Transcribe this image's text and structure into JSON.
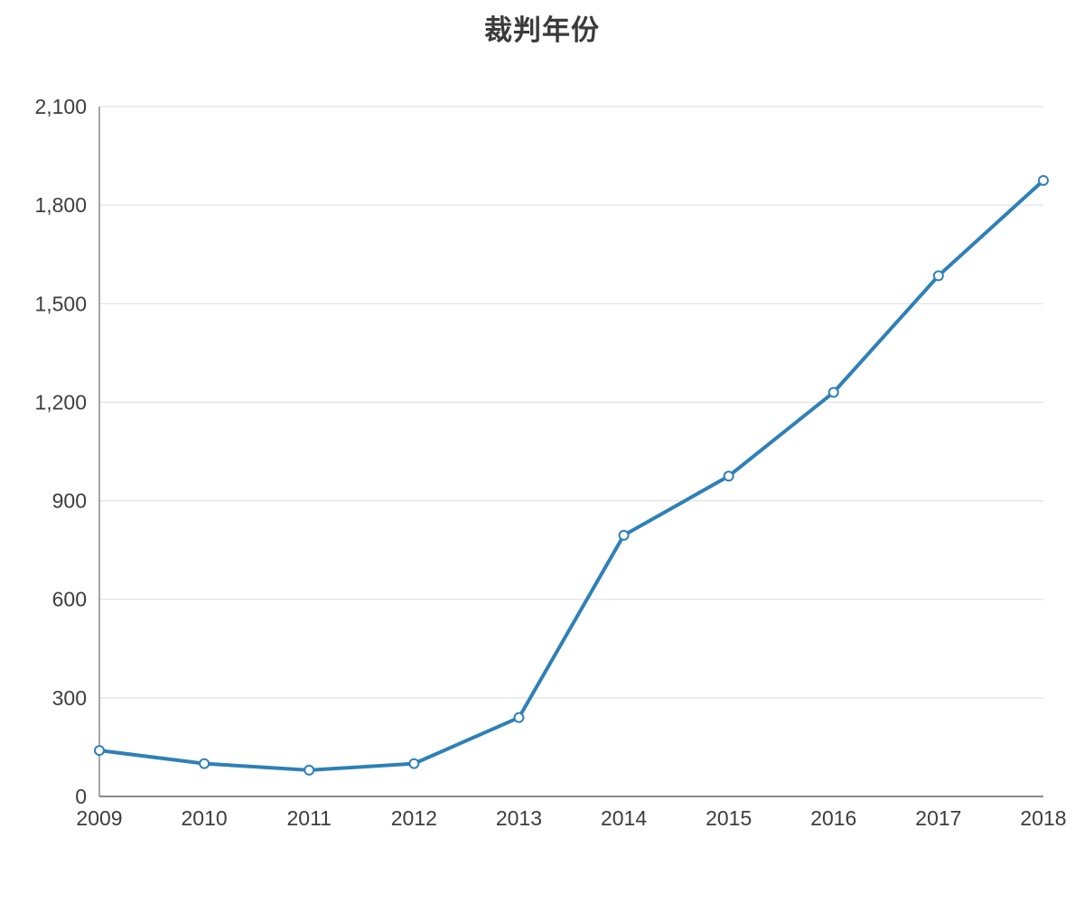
{
  "chart_data": {
    "type": "line",
    "title": "裁判年份",
    "xlabel": "",
    "ylabel": "",
    "categories": [
      "2009",
      "2010",
      "2011",
      "2012",
      "2013",
      "2014",
      "2015",
      "2016",
      "2017",
      "2018"
    ],
    "series": [
      {
        "name": "裁判年份",
        "values": [
          140,
          100,
          80,
          100,
          240,
          795,
          975,
          1230,
          1585,
          1875
        ]
      }
    ],
    "ylim": [
      0,
      2100
    ],
    "yticks": [
      0,
      300,
      600,
      900,
      1200,
      1500,
      1800,
      2100
    ],
    "ytick_labels": [
      "0",
      "300",
      "600",
      "900",
      "1,200",
      "1,500",
      "1,800",
      "2,100"
    ],
    "grid": true,
    "legend_position": "none",
    "colors": {
      "line": "#2e80b8",
      "marker_fill": "#ffffff",
      "grid": "#dcdcdc",
      "axis": "#8a8a8a",
      "label": "#3d3d3d",
      "title": "#3b3b3b"
    }
  }
}
